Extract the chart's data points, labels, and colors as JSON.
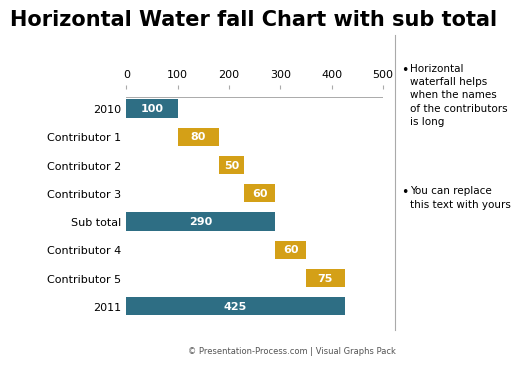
{
  "title": "Horizontal Water fall Chart with sub total",
  "labels": [
    "2010",
    "Contributor 1",
    "Contributor 2",
    "Contributor 3",
    "Sub total",
    "Contributor 4",
    "Contributor 5",
    "2011"
  ],
  "bar_values": [
    100,
    80,
    50,
    60,
    290,
    60,
    75,
    425
  ],
  "bar_starts": [
    0,
    100,
    180,
    230,
    0,
    290,
    350,
    0
  ],
  "bar_colors": [
    "#2E6E84",
    "#D4A017",
    "#D4A017",
    "#D4A017",
    "#2E6E84",
    "#D4A017",
    "#D4A017",
    "#2E6E84"
  ],
  "bar_labels": [
    "100",
    "80",
    "50",
    "60",
    "290",
    "60",
    "75",
    "425"
  ],
  "xlim": [
    0,
    500
  ],
  "xticks": [
    0,
    100,
    200,
    300,
    400,
    500
  ],
  "background_color": "#FFFFFF",
  "title_fontsize": 15,
  "bar_label_fontsize": 8,
  "ytick_fontsize": 8,
  "xtick_fontsize": 8,
  "text_color": "#FFFFFF",
  "bullet1": "Horizontal\nwaterfall helps\nwhen the names\nof the contributors\nis long",
  "bullet2": "You can replace\nthis text with yours",
  "footer_text": "© Presentation-Process.com | Visual Graphs Pack"
}
